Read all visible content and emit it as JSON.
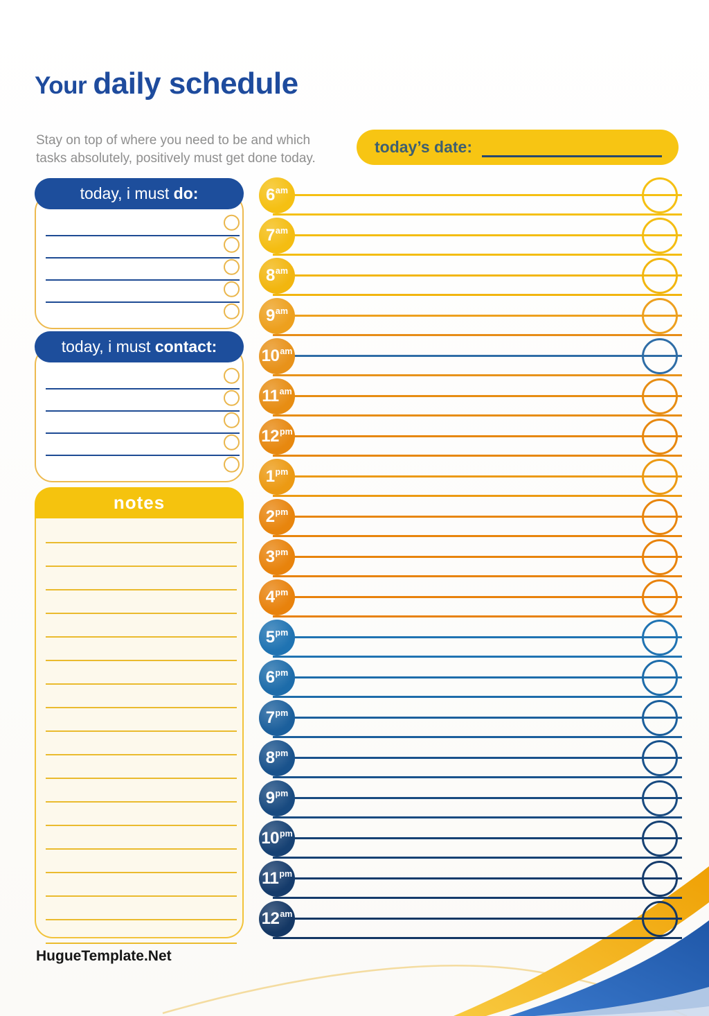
{
  "page": {
    "footer": "HugueTemplate.Net"
  },
  "header": {
    "title_light": "Your ",
    "title_bold": "daily schedule",
    "subtitle_line1": "Stay on top of where you need to be and which",
    "subtitle_line2": "tasks absolutely, positively must get done today."
  },
  "date_banner": {
    "label": "today’s date:",
    "bg": "#F7C513",
    "text_color": "#3E5F70",
    "line_color": "#26486F"
  },
  "panels": {
    "todo": {
      "title_regular": "today, i must ",
      "title_bold": "do:",
      "header_bg": "#1D4E9C",
      "line_count": 5
    },
    "contact": {
      "title_regular": "today, i must ",
      "title_bold": "contact:",
      "header_bg": "#1D4E9C",
      "line_count": 5
    },
    "notes": {
      "title": "notes",
      "header_bg": "#F5C30E",
      "body_bg": "#FDF9EC",
      "line_count": 18
    }
  },
  "schedule": {
    "hours": [
      {
        "label": "6",
        "meridiem": "am",
        "color": "#F5C013"
      },
      {
        "label": "7",
        "meridiem": "am",
        "color": "#F4BD12"
      },
      {
        "label": "8",
        "meridiem": "am",
        "color": "#F2B60F"
      },
      {
        "label": "9",
        "meridiem": "am",
        "color": "#EDA01E",
        "bottom_color": "#E78D18"
      },
      {
        "label": "10",
        "meridiem": "am",
        "color": "#E8921A",
        "mid_color": "#2F6DA6",
        "ring_color": "#2F6DA6",
        "bottom_color": "#E8921A"
      },
      {
        "label": "11",
        "meridiem": "am",
        "color": "#E78D13"
      },
      {
        "label": "12",
        "meridiem": "pm",
        "color": "#E7880F"
      },
      {
        "label": "1",
        "meridiem": "pm",
        "color": "#EC9A13"
      },
      {
        "label": "2",
        "meridiem": "pm",
        "color": "#E8850D"
      },
      {
        "label": "3",
        "meridiem": "pm",
        "color": "#E8830C"
      },
      {
        "label": "4",
        "meridiem": "pm",
        "color": "#E8820C"
      },
      {
        "label": "5",
        "meridiem": "pm",
        "color": "#1F73B2"
      },
      {
        "label": "6",
        "meridiem": "pm",
        "color": "#1D6CAA"
      },
      {
        "label": "7",
        "meridiem": "pm",
        "color": "#1B5F9C"
      },
      {
        "label": "8",
        "meridiem": "pm",
        "color": "#19528C"
      },
      {
        "label": "9",
        "meridiem": "pm",
        "color": "#184A80"
      },
      {
        "label": "10",
        "meridiem": "pm",
        "color": "#164173"
      },
      {
        "label": "11",
        "meridiem": "pm",
        "color": "#153B6B"
      },
      {
        "label": "12",
        "meridiem": "am",
        "color": "#143764"
      }
    ]
  },
  "decor": {
    "gold_band": "#F2AE0B",
    "gold_band_light": "#F8C93F",
    "blue_band": "#2E6BC0",
    "blue_band_dark": "#1F57A8",
    "pale_blue_band": "#A9C3E3",
    "palest_blue_band": "#CEDCEE"
  }
}
